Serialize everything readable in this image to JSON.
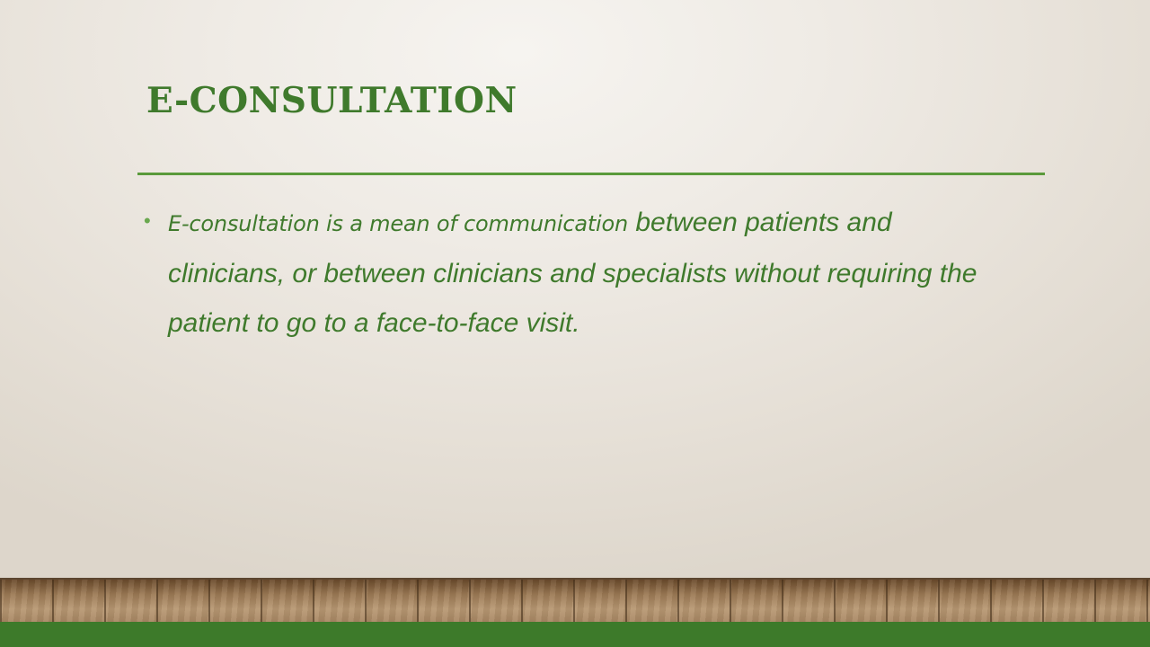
{
  "slide": {
    "title": "E-CONSULTATION",
    "bullets": [
      {
        "lead": "E-consultation is a mean of communication",
        "rest": " between patients and clinicians, or between clinicians and specialists without requiring the patient to go to a face-to-face visit."
      }
    ]
  },
  "colors": {
    "title": "#3f7a2c",
    "rule": "#5a9a3b",
    "body_text": "#3f7a2c",
    "bullet": "#6aa84f",
    "footer_bar": "#3d7a2a",
    "floor": "#a88763"
  },
  "icons": {
    "bullet": "bullet-dot"
  }
}
